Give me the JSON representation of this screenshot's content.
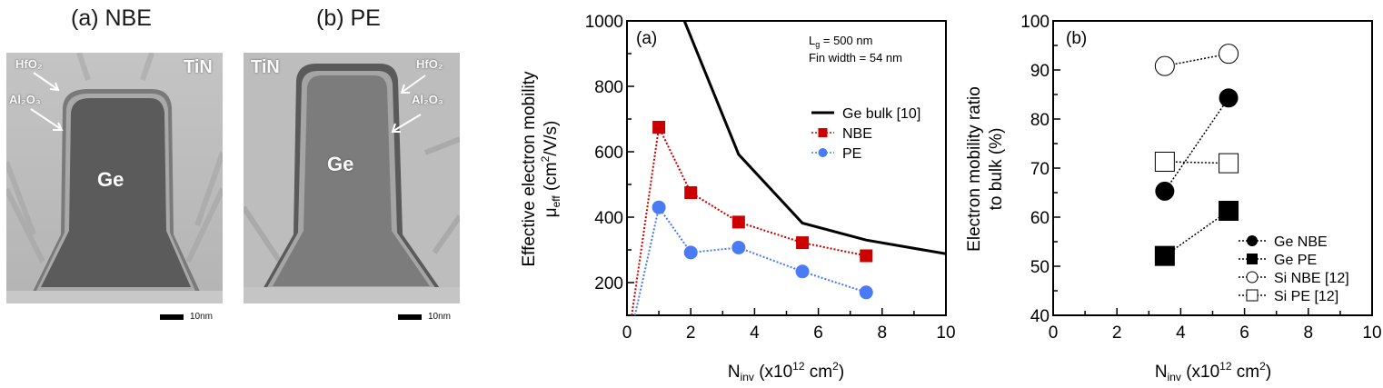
{
  "tem_images": [
    {
      "title": "(a) NBE",
      "labels": {
        "metal": "TiN",
        "hfo2": "HfO₂",
        "al2o3": "Al₂O₃",
        "core": "Ge"
      },
      "scale_bar": "10nm"
    },
    {
      "title": "(b) PE",
      "labels": {
        "metal": "TiN",
        "hfo2": "HfO₂",
        "al2o3": "Al₂O₃",
        "core": "Ge"
      },
      "scale_bar": "10nm"
    }
  ],
  "chart_data": [
    {
      "type": "line",
      "panel_label": "(a)",
      "title": "",
      "xlabel": "N_inv (x10^12 cm^2)",
      "xlabel_parts": {
        "main": "N",
        "sub": "inv",
        "rest1": " (x10",
        "sup1": "12",
        "rest2": " cm",
        "sup2": "2",
        "rest3": ")"
      },
      "ylabel": "Effective electron mobility μ_eff (cm^2/V/s)",
      "ylabel_parts": {
        "line1": "Effective electron mobility",
        "mu": "μ",
        "sub": "eff",
        "rest1": " (cm",
        "sup": "2",
        "rest2": "/V/s)"
      },
      "xlim": [
        0,
        10
      ],
      "ylim": [
        100,
        1000
      ],
      "xticks": [
        0,
        2,
        4,
        6,
        8,
        10
      ],
      "yticks": [
        200,
        400,
        600,
        800,
        1000
      ],
      "grid": false,
      "annotation": {
        "line1_main": "L",
        "line1_sub": "g",
        "line1_rest": " = 500 nm",
        "line2": "Fin width = 54 nm"
      },
      "legend_position": "right-middle",
      "series": [
        {
          "name": "Ge bulk [10]",
          "style": "solid",
          "marker": "none",
          "color": "#000000",
          "x": [
            1.8,
            3.5,
            5.5,
            7.5,
            10
          ],
          "y": [
            1000,
            592,
            382,
            330,
            288
          ]
        },
        {
          "name": "NBE",
          "style": "dotted",
          "marker": "square",
          "color": "#cc0000",
          "x": [
            0.15,
            1,
            2,
            3.5,
            5.5,
            7.5
          ],
          "y": [
            100,
            675,
            475,
            385,
            322,
            282
          ],
          "markers_from_index": 1
        },
        {
          "name": "PE",
          "style": "dotted",
          "marker": "circle",
          "color": "#4a7bf5",
          "x": [
            0.25,
            1,
            2,
            3.5,
            5.5,
            7.5
          ],
          "y": [
            100,
            430,
            292,
            307,
            234,
            170
          ],
          "markers_from_index": 1
        }
      ]
    },
    {
      "type": "scatter",
      "panel_label": "(b)",
      "title": "",
      "xlabel": "N_inv (x10^12 cm^2)",
      "xlabel_parts": {
        "main": "N",
        "sub": "inv",
        "rest1": " (x10",
        "sup1": "12",
        "rest2": " cm",
        "sup2": "2",
        "rest3": ")"
      },
      "ylabel": "Electron mobility ratio to bulk (%)",
      "ylabel_parts": {
        "line1": "Electron mobility ratio",
        "line2": "to bulk (%)"
      },
      "xlim": [
        0,
        10
      ],
      "ylim": [
        40,
        100
      ],
      "xticks": [
        0,
        2,
        4,
        6,
        8,
        10
      ],
      "yticks": [
        40,
        50,
        60,
        70,
        80,
        90,
        100
      ],
      "grid": false,
      "legend_position": "bottom-right",
      "series": [
        {
          "name": "Ge NBE",
          "marker": "filled-circle",
          "color": "#000000",
          "x": [
            3.5,
            5.5
          ],
          "y": [
            65.3,
            84.3
          ]
        },
        {
          "name": "Ge PE",
          "marker": "filled-square",
          "color": "#000000",
          "x": [
            3.5,
            5.5
          ],
          "y": [
            52.1,
            61.3
          ]
        },
        {
          "name": "Si NBE [12]",
          "marker": "open-circle",
          "color": "#000000",
          "x": [
            3.5,
            5.5
          ],
          "y": [
            90.8,
            93.3
          ]
        },
        {
          "name": "Si PE [12]",
          "marker": "open-square",
          "color": "#000000",
          "x": [
            3.5,
            5.5
          ],
          "y": [
            71.3,
            71.0
          ]
        }
      ]
    }
  ]
}
